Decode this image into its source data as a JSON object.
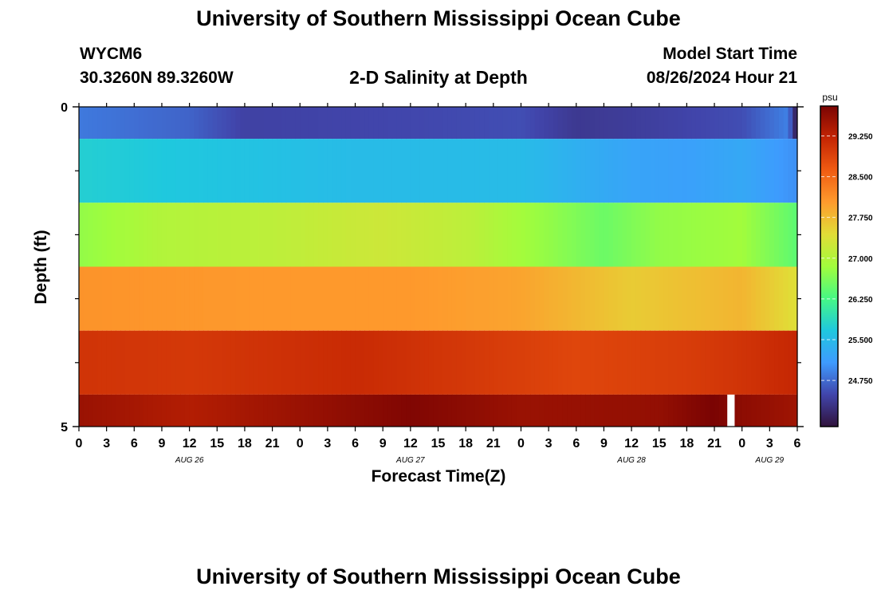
{
  "page": {
    "title": "University of Southern Mississippi Ocean Cube",
    "footer_title": "University of Southern Mississippi Ocean Cube"
  },
  "header": {
    "station_id": "WYCM6",
    "coords": "30.3260N  89.3260W",
    "plot_title": "2-D Salinity at Depth",
    "model_start_label": "Model Start Time",
    "model_start_value": "08/26/2024 Hour 21"
  },
  "colors": {
    "scale": [
      "#30123b",
      "#4145ab",
      "#3e9bfe",
      "#1fc8de",
      "#46f884",
      "#a2fc3c",
      "#e1dd37",
      "#fe9b2d",
      "#f05b12",
      "#c42503",
      "#7a0403"
    ]
  },
  "chart_data": {
    "type": "heatmap",
    "title": "2-D Salinity at Depth",
    "xlabel": "Forecast Time(Z)",
    "ylabel": "Depth (ft)",
    "units": "psu",
    "x_range_hours": [
      0,
      78
    ],
    "xticks": [
      {
        "h": 0,
        "label": "0"
      },
      {
        "h": 3,
        "label": "3"
      },
      {
        "h": 6,
        "label": "6"
      },
      {
        "h": 9,
        "label": "9"
      },
      {
        "h": 12,
        "label": "12"
      },
      {
        "h": 15,
        "label": "15"
      },
      {
        "h": 18,
        "label": "18"
      },
      {
        "h": 21,
        "label": "21"
      },
      {
        "h": 24,
        "label": "0"
      },
      {
        "h": 27,
        "label": "3"
      },
      {
        "h": 30,
        "label": "6"
      },
      {
        "h": 33,
        "label": "9"
      },
      {
        "h": 36,
        "label": "12"
      },
      {
        "h": 39,
        "label": "15"
      },
      {
        "h": 42,
        "label": "18"
      },
      {
        "h": 45,
        "label": "21"
      },
      {
        "h": 48,
        "label": "0"
      },
      {
        "h": 51,
        "label": "3"
      },
      {
        "h": 54,
        "label": "6"
      },
      {
        "h": 57,
        "label": "9"
      },
      {
        "h": 60,
        "label": "12"
      },
      {
        "h": 63,
        "label": "15"
      },
      {
        "h": 66,
        "label": "18"
      },
      {
        "h": 69,
        "label": "21"
      },
      {
        "h": 72,
        "label": "0"
      },
      {
        "h": 75,
        "label": "3"
      },
      {
        "h": 78,
        "label": "6"
      }
    ],
    "date_labels": [
      {
        "h": 12,
        "label": "AUG 26"
      },
      {
        "h": 36,
        "label": "AUG 27"
      },
      {
        "h": 60,
        "label": "AUG 28"
      },
      {
        "h": 75,
        "label": "AUG 29"
      }
    ],
    "y_range_ft": [
      0,
      5
    ],
    "yticks": [
      {
        "v": 0,
        "label": "0"
      },
      {
        "v": 5,
        "label": "5"
      }
    ],
    "colorbar": {
      "min": 23.9,
      "max": 29.8,
      "ticks": [
        "24.750",
        "25.500",
        "26.250",
        "27.000",
        "27.750",
        "28.500",
        "29.250"
      ]
    },
    "layers": [
      {
        "top": 0.0,
        "bottom": 0.5,
        "knots": [
          [
            0,
            24.85
          ],
          [
            12,
            24.7
          ],
          [
            18,
            24.45
          ],
          [
            36,
            24.5
          ],
          [
            48,
            24.55
          ],
          [
            54,
            24.35
          ],
          [
            60,
            24.4
          ],
          [
            72,
            24.55
          ],
          [
            77,
            24.9
          ],
          [
            78,
            23.9
          ]
        ]
      },
      {
        "top": 0.5,
        "bottom": 1.5,
        "knots": [
          [
            0,
            25.75
          ],
          [
            30,
            25.5
          ],
          [
            48,
            25.5
          ],
          [
            60,
            25.2
          ],
          [
            66,
            25.15
          ],
          [
            72,
            25.25
          ],
          [
            78,
            25.0
          ]
        ]
      },
      {
        "top": 1.5,
        "bottom": 2.5,
        "knots": [
          [
            0,
            26.75
          ],
          [
            9,
            27.0
          ],
          [
            21,
            27.1
          ],
          [
            33,
            27.25
          ],
          [
            42,
            27.1
          ],
          [
            51,
            26.75
          ],
          [
            57,
            26.5
          ],
          [
            63,
            26.75
          ],
          [
            72,
            26.85
          ],
          [
            78,
            26.4
          ]
        ]
      },
      {
        "top": 2.5,
        "bottom": 3.5,
        "knots": [
          [
            0,
            28.1
          ],
          [
            18,
            28.05
          ],
          [
            36,
            28.05
          ],
          [
            48,
            27.95
          ],
          [
            60,
            27.6
          ],
          [
            72,
            27.8
          ],
          [
            78,
            27.4
          ]
        ]
      },
      {
        "top": 3.5,
        "bottom": 4.5,
        "knots": [
          [
            0,
            29.05
          ],
          [
            12,
            29.0
          ],
          [
            30,
            29.15
          ],
          [
            42,
            29.0
          ],
          [
            54,
            28.85
          ],
          [
            66,
            28.95
          ],
          [
            72,
            29.05
          ],
          [
            78,
            29.2
          ]
        ]
      },
      {
        "top": 4.5,
        "bottom": 5.0,
        "knots": [
          [
            0,
            29.55
          ],
          [
            12,
            29.35
          ],
          [
            24,
            29.55
          ],
          [
            36,
            29.75
          ],
          [
            48,
            29.55
          ],
          [
            63,
            29.6
          ],
          [
            69,
            29.8
          ],
          [
            72,
            29.65
          ],
          [
            78,
            29.5
          ]
        ]
      }
    ],
    "missing": [
      {
        "h_start": 70.4,
        "h_end": 71.2,
        "top": 4.5,
        "bottom": 5.0
      }
    ]
  }
}
